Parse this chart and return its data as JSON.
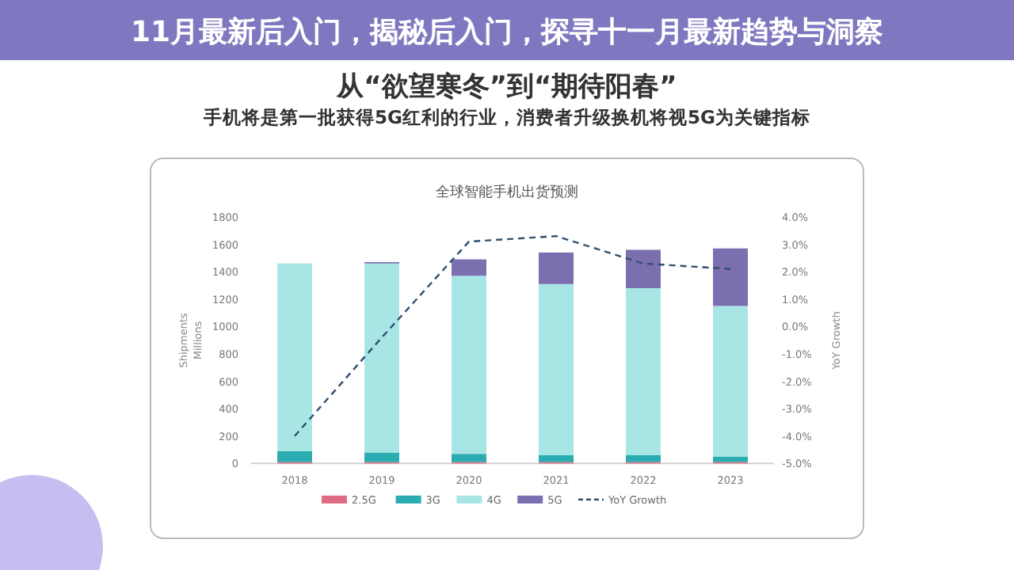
{
  "chart_data": {
    "type": "bar",
    "title": "全球智能手机出货预测",
    "stacked": true,
    "annotations": [
      "从“欲望寒冬”到“期待阳春”",
      "手机将是第一批获得5G红利的行业，消费者升级换机将视5G为关键指标",
      "11月最新后入门，揭秘后入门，探寻十一月最新趋势与洞察"
    ],
    "ylabel": "Shipments Millions",
    "y2label": "YoY Growth",
    "categories": [
      "2018",
      "2019",
      "2020",
      "2021",
      "2022",
      "2023"
    ],
    "series": [
      {
        "name": "2.5G",
        "color": "#e06c84",
        "values": [
          10,
          10,
          10,
          10,
          10,
          10
        ]
      },
      {
        "name": "3G",
        "color": "#2aacb0",
        "values": [
          80,
          70,
          60,
          50,
          50,
          40
        ]
      },
      {
        "name": "4G",
        "color": "#a8e6e6",
        "values": [
          1370,
          1380,
          1300,
          1250,
          1220,
          1100
        ]
      },
      {
        "name": "5G",
        "color": "#7b6fb0",
        "values": [
          null,
          10,
          120,
          230,
          280,
          420
        ]
      },
      {
        "name": "YoY Growth",
        "type": "line",
        "axis": "y2",
        "color": "#2f4f6f",
        "line_style": "dashed",
        "marker": "none",
        "values": [
          -4.0,
          -0.4,
          3.1,
          3.3,
          2.3,
          2.1
        ]
      }
    ],
    "ylim": [
      0,
      1800
    ],
    "yticks": [
      0,
      200,
      400,
      600,
      800,
      1000,
      1200,
      1400,
      1600,
      1800
    ],
    "y2lim": [
      -5,
      4
    ],
    "y2ticks": [
      {
        "value": -5,
        "label": "-5.0%"
      },
      {
        "value": -4,
        "label": "-4.0%"
      },
      {
        "value": -3,
        "label": "-3.0%"
      },
      {
        "value": -2,
        "label": "-2.0%"
      },
      {
        "value": -1,
        "label": "-1.0%"
      },
      {
        "value": 0,
        "label": "0.0%"
      },
      {
        "value": 1,
        "label": "1.0%"
      },
      {
        "value": 2,
        "label": "2.0%"
      },
      {
        "value": 3,
        "label": "3.0%"
      },
      {
        "value": 4,
        "label": "4.0%"
      }
    ],
    "legend": "bottom"
  }
}
